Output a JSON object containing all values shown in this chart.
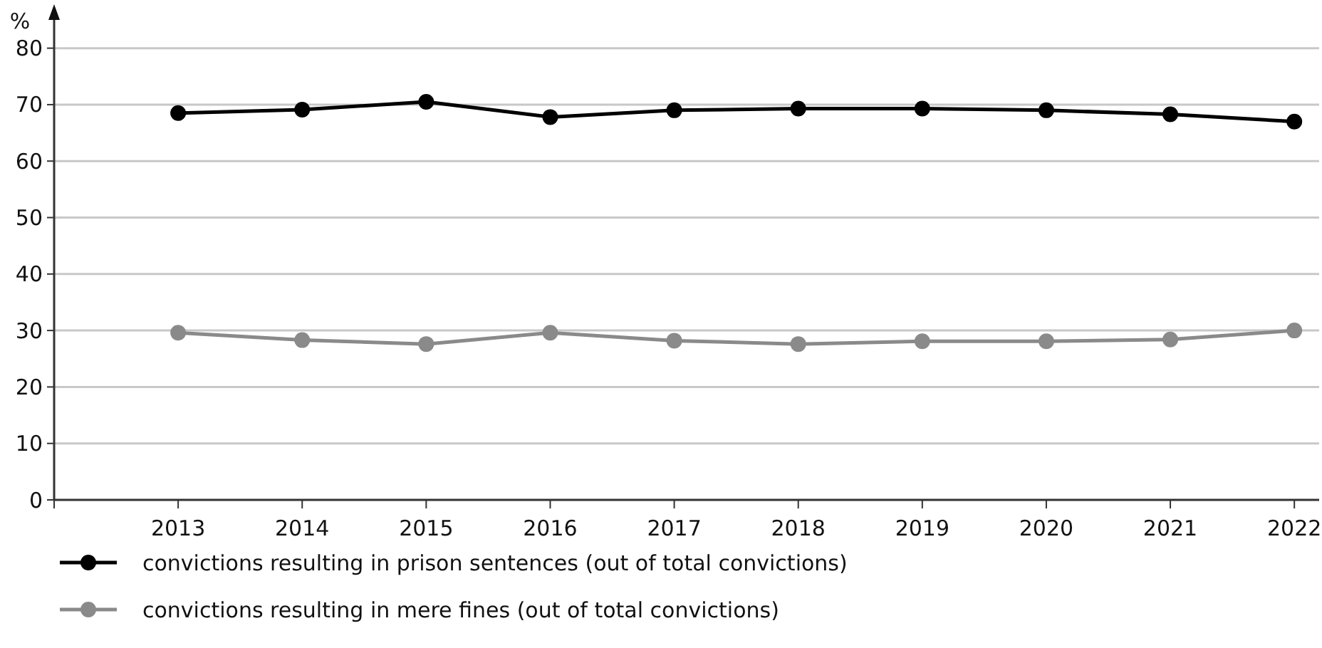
{
  "chart_data": {
    "type": "line",
    "ylabel": "%",
    "categories": [
      "2013",
      "2014",
      "2015",
      "2016",
      "2017",
      "2018",
      "2019",
      "2020",
      "2021",
      "2022"
    ],
    "series": [
      {
        "name": "convictions resulting in prison sentences (out of total convictions)",
        "color": "#000000",
        "values": [
          68.5,
          69.1,
          70.5,
          67.8,
          69.0,
          69.3,
          69.3,
          69.0,
          68.3,
          67.0
        ]
      },
      {
        "name": "convictions resulting in mere fines (out of total convictions)",
        "color": "#8a8a8a",
        "values": [
          29.6,
          28.3,
          27.6,
          29.6,
          28.2,
          27.6,
          28.1,
          28.1,
          28.4,
          30.0
        ]
      }
    ],
    "ylim": [
      0,
      85
    ],
    "yticks": [
      0,
      10,
      20,
      30,
      40,
      50,
      60,
      70,
      80
    ],
    "grid": "y",
    "legend": "bottom left",
    "marker": "circle",
    "line_style": "solid"
  }
}
